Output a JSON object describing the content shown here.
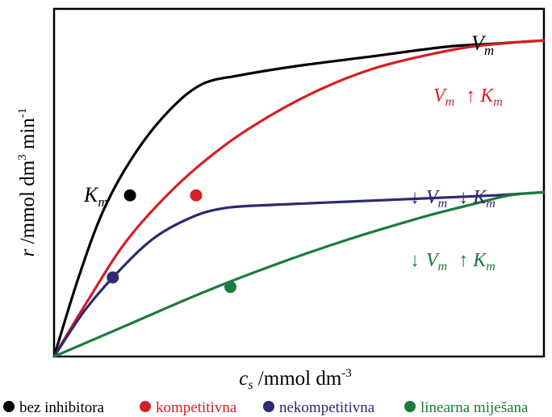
{
  "chart_data": {
    "type": "line",
    "title": "",
    "xlabel": {
      "main": "c",
      "sub": "s",
      "rest": " /mmol dm",
      "sup": "-3"
    },
    "ylabel": {
      "main": "r",
      "rest": " /mmol dm",
      "sup1": "3",
      "mid": " min",
      "sup2": "-1"
    },
    "xlim": [
      0,
      10
    ],
    "ylim": [
      0,
      1.1
    ],
    "grid": false,
    "series": [
      {
        "name": "bez inhibitora",
        "color": "#000000",
        "x": [
          0,
          0.5,
          1,
          1.6,
          2.3,
          3,
          3.8,
          5,
          6.5,
          8,
          9,
          10
        ],
        "y": [
          0,
          0.25,
          0.46,
          0.63,
          0.77,
          0.86,
          0.89,
          0.92,
          0.95,
          0.98,
          0.99,
          1.0
        ],
        "marker": {
          "x": 1.55,
          "y": 0.51
        }
      },
      {
        "name": "kompetitivna",
        "color": "#d42027",
        "x": [
          0,
          0.7,
          1.5,
          2.5,
          3.5,
          4.5,
          5.5,
          6.5,
          7.5,
          8.5,
          9.5,
          10
        ],
        "y": [
          0,
          0.18,
          0.37,
          0.54,
          0.67,
          0.77,
          0.85,
          0.91,
          0.95,
          0.98,
          0.995,
          1.0
        ],
        "marker": {
          "x": 2.9,
          "y": 0.51
        }
      },
      {
        "name": "nekompetitivna",
        "color": "#2b2a72",
        "x": [
          0,
          0.6,
          1.2,
          2,
          2.8,
          3.5,
          4.5,
          6,
          7.5,
          9,
          10
        ],
        "y": [
          0,
          0.14,
          0.25,
          0.37,
          0.44,
          0.47,
          0.48,
          0.49,
          0.5,
          0.51,
          0.52
        ],
        "marker": {
          "x": 1.2,
          "y": 0.25
        }
      },
      {
        "name": "linearna miješana",
        "color": "#1c7a3d",
        "x": [
          0,
          1.5,
          3,
          4.5,
          6,
          7.5,
          8.5,
          9.3,
          10
        ],
        "y": [
          0,
          0.1,
          0.2,
          0.29,
          0.37,
          0.44,
          0.48,
          0.51,
          0.52
        ],
        "marker": {
          "x": 3.6,
          "y": 0.22
        }
      }
    ],
    "annotations": {
      "vm_top": {
        "main": "V",
        "sub": "m"
      },
      "km_black": {
        "main": "K",
        "sub": "m"
      },
      "red": {
        "v": "V",
        "vsub": "m",
        "arrow": "↑",
        "k": "K",
        "ksub": "m"
      },
      "blue": {
        "arrow1": "↓",
        "v": "V",
        "vsub": "m",
        "arrow2": "↓",
        "k": "K",
        "ksub": "m"
      },
      "green": {
        "arrow1": "↓",
        "v": "V",
        "vsub": "m",
        "arrow2": "↑",
        "k": "K",
        "ksub": "m"
      }
    },
    "legend": {
      "position": "bottom",
      "entries": [
        {
          "label": "bez inhibitora",
          "dot_color": "#000000",
          "text_color": "#000000"
        },
        {
          "label": "kompetitivna",
          "dot_color": "#d42027",
          "text_color": "#d42027"
        },
        {
          "label": "nekompetitivna",
          "dot_color": "#2b2a72",
          "text_color": "#2b2a72"
        },
        {
          "label": "linearna miješana",
          "dot_color": "#1c7a3d",
          "text_color": "#1c7a3d"
        }
      ]
    }
  }
}
